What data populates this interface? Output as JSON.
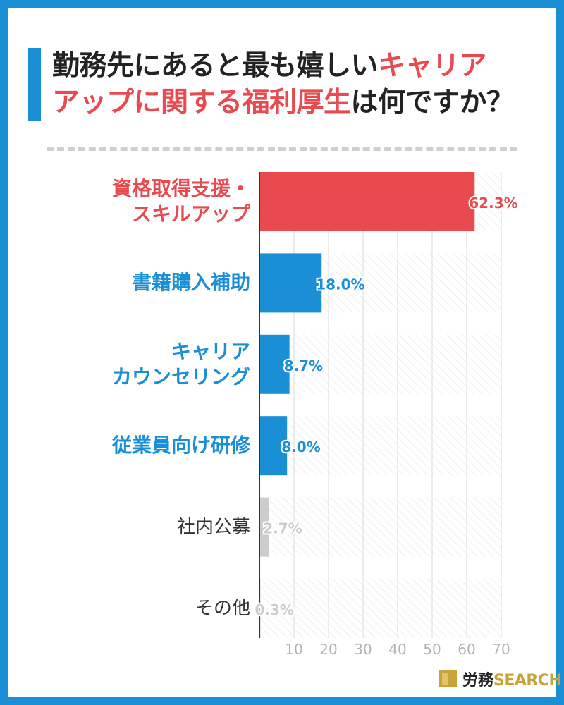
{
  "title": {
    "part1": "勤務先にあると最も嬉しい",
    "highlight1": "キャリア",
    "highlight2": "アップに関する福利厚生",
    "part2": "は何ですか？"
  },
  "logo": {
    "jp": "労務",
    "en": "SEARCH"
  },
  "colors": {
    "accent_red": "#e84a4f",
    "accent_blue": "#1a8fd6",
    "muted_gray": "#cccccc"
  },
  "chart_data": {
    "type": "bar",
    "orientation": "horizontal",
    "categories": [
      [
        "資格取得支援・",
        "スキルアップ"
      ],
      [
        "書籍購入補助"
      ],
      [
        "キャリア",
        "カウンセリング"
      ],
      [
        "従業員向け研修"
      ],
      [
        "社内公募"
      ],
      [
        "その他"
      ]
    ],
    "values": [
      62.3,
      18.0,
      8.7,
      8.0,
      2.7,
      0.3
    ],
    "value_labels": [
      "62.3%",
      "18.0%",
      "8.7%",
      "8.0%",
      "2.7%",
      "0.3%"
    ],
    "bar_colors": [
      "#e84a4f",
      "#1a8fd6",
      "#1a8fd6",
      "#1a8fd6",
      "#cccccc",
      "#cccccc"
    ],
    "label_colors": [
      "#e84a4f",
      "#1a8fd6",
      "#1a8fd6",
      "#1a8fd6",
      "#333333",
      "#333333"
    ],
    "value_label_colors": [
      "#e84a4f",
      "#1a8fd6",
      "#1a8fd6",
      "#1a8fd6",
      "#cccccc",
      "#cccccc"
    ],
    "xlim": [
      0,
      70
    ],
    "xticks": [
      "10",
      "20",
      "30",
      "40",
      "50",
      "60",
      "70"
    ],
    "grid": true
  }
}
